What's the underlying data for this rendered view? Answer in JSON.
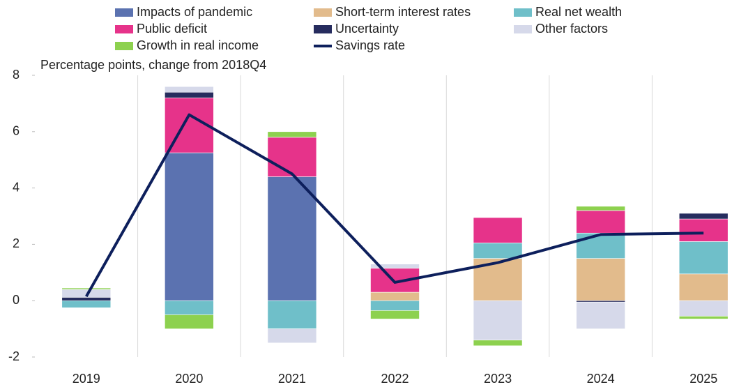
{
  "chart_data": {
    "type": "bar",
    "stacked": true,
    "subtitle": "Percentage points, change from 2018Q4",
    "categories": [
      "2019",
      "2020",
      "2021",
      "2022",
      "2023",
      "2024",
      "2025"
    ],
    "series": [
      {
        "name": "Impacts of pandemic",
        "color": "#5b72b0",
        "values": [
          0,
          5.25,
          4.4,
          0,
          0,
          0,
          0
        ]
      },
      {
        "name": "Short-term interest rates",
        "color": "#e2bb8c",
        "values": [
          0,
          0,
          0,
          0.3,
          1.5,
          1.5,
          0.95
        ]
      },
      {
        "name": "Real net wealth",
        "color": "#6fbfc9",
        "values": [
          -0.25,
          -0.5,
          -1.0,
          -0.35,
          0.55,
          0.9,
          1.15
        ]
      },
      {
        "name": "Public deficit",
        "color": "#e6338a",
        "values": [
          0,
          1.95,
          1.4,
          0.85,
          0.9,
          0.8,
          0.8
        ]
      },
      {
        "name": "Uncertainty",
        "color": "#262c5e",
        "values": [
          0.12,
          0.2,
          0,
          0,
          0,
          -0.05,
          0.2
        ]
      },
      {
        "name": "Other factors",
        "color": "#d6d9ea",
        "values": [
          0.28,
          0.2,
          -0.5,
          0.15,
          -1.4,
          -0.95,
          -0.55
        ]
      },
      {
        "name": "Growth in real income",
        "color": "#8dd14f",
        "values": [
          0.05,
          -0.5,
          0.2,
          -0.3,
          -0.2,
          0.15,
          -0.1
        ]
      },
      {
        "name": "Savings rate",
        "color": "#0d1f5c",
        "type": "line",
        "values": [
          0.15,
          6.6,
          4.5,
          0.65,
          1.35,
          2.35,
          2.4
        ]
      }
    ],
    "ylim": [
      -2,
      8
    ],
    "yticks": [
      -2,
      0,
      2,
      4,
      6,
      8
    ],
    "grid": true
  }
}
